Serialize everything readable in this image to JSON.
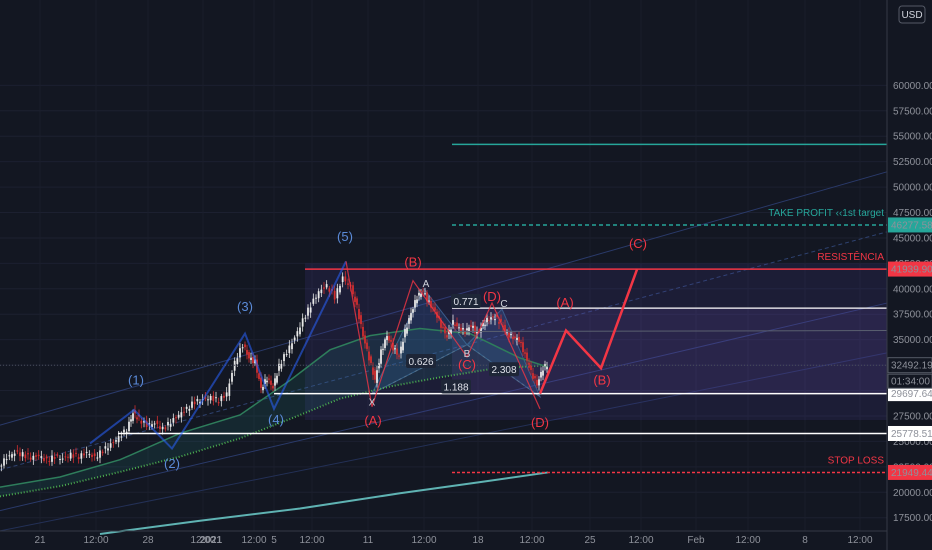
{
  "currency": "USD",
  "chart_data": {
    "type": "candlestick",
    "title": "",
    "xlabel": "",
    "ylabel": "",
    "ylim": [
      15800,
      62000
    ],
    "x_ticks": [
      "21",
      "12:00",
      "28",
      "12:00",
      "2021",
      "12:00",
      "5",
      "12:00",
      "11",
      "12:00",
      "18",
      "12:00",
      "25",
      "12:00",
      "Feb",
      "12:00",
      "8",
      "12:00"
    ],
    "y_ticks": [
      17500,
      20000,
      22500,
      25000,
      27500,
      30000,
      32500,
      35000,
      37500,
      40000,
      42500,
      45000,
      47500,
      50000,
      52500,
      55000,
      57500,
      60000
    ],
    "price_path": [
      {
        "t": 0,
        "v": 22600
      },
      {
        "t": 8,
        "v": 23400
      },
      {
        "t": 16,
        "v": 23900
      },
      {
        "t": 24,
        "v": 23700
      },
      {
        "t": 32,
        "v": 23400
      },
      {
        "t": 40,
        "v": 23600
      },
      {
        "t": 48,
        "v": 23100
      },
      {
        "t": 56,
        "v": 23500
      },
      {
        "t": 64,
        "v": 23300
      },
      {
        "t": 72,
        "v": 23700
      },
      {
        "t": 80,
        "v": 23500
      },
      {
        "t": 88,
        "v": 23900
      },
      {
        "t": 96,
        "v": 23400
      },
      {
        "t": 104,
        "v": 24100
      },
      {
        "t": 112,
        "v": 24700
      },
      {
        "t": 120,
        "v": 25400
      },
      {
        "t": 128,
        "v": 26200
      },
      {
        "t": 134,
        "v": 27800
      },
      {
        "t": 140,
        "v": 27200
      },
      {
        "t": 148,
        "v": 26600
      },
      {
        "t": 156,
        "v": 26800
      },
      {
        "t": 164,
        "v": 26200
      },
      {
        "t": 172,
        "v": 26900
      },
      {
        "t": 180,
        "v": 27600
      },
      {
        "t": 188,
        "v": 28200
      },
      {
        "t": 196,
        "v": 28900
      },
      {
        "t": 204,
        "v": 29100
      },
      {
        "t": 212,
        "v": 29300
      },
      {
        "t": 220,
        "v": 29000
      },
      {
        "t": 228,
        "v": 29700
      },
      {
        "t": 236,
        "v": 32800
      },
      {
        "t": 244,
        "v": 34500
      },
      {
        "t": 250,
        "v": 33200
      },
      {
        "t": 256,
        "v": 32800
      },
      {
        "t": 262,
        "v": 30200
      },
      {
        "t": 268,
        "v": 31200
      },
      {
        "t": 274,
        "v": 30300
      },
      {
        "t": 280,
        "v": 32400
      },
      {
        "t": 288,
        "v": 33800
      },
      {
        "t": 296,
        "v": 35200
      },
      {
        "t": 304,
        "v": 36900
      },
      {
        "t": 312,
        "v": 38400
      },
      {
        "t": 320,
        "v": 39700
      },
      {
        "t": 328,
        "v": 40300
      },
      {
        "t": 336,
        "v": 39200
      },
      {
        "t": 344,
        "v": 41100
      },
      {
        "t": 352,
        "v": 40100
      },
      {
        "t": 358,
        "v": 38200
      },
      {
        "t": 364,
        "v": 35400
      },
      {
        "t": 370,
        "v": 33200
      },
      {
        "t": 376,
        "v": 31000
      },
      {
        "t": 382,
        "v": 33800
      },
      {
        "t": 388,
        "v": 35400
      },
      {
        "t": 394,
        "v": 34200
      },
      {
        "t": 400,
        "v": 33400
      },
      {
        "t": 406,
        "v": 35800
      },
      {
        "t": 412,
        "v": 37600
      },
      {
        "t": 418,
        "v": 39200
      },
      {
        "t": 424,
        "v": 39800
      },
      {
        "t": 430,
        "v": 38600
      },
      {
        "t": 436,
        "v": 37800
      },
      {
        "t": 442,
        "v": 36400
      },
      {
        "t": 448,
        "v": 35300
      },
      {
        "t": 454,
        "v": 36700
      },
      {
        "t": 460,
        "v": 36100
      },
      {
        "t": 466,
        "v": 35800
      },
      {
        "t": 472,
        "v": 36400
      },
      {
        "t": 478,
        "v": 35600
      },
      {
        "t": 484,
        "v": 36500
      },
      {
        "t": 490,
        "v": 37100
      },
      {
        "t": 496,
        "v": 37200
      },
      {
        "t": 502,
        "v": 36600
      },
      {
        "t": 508,
        "v": 35600
      },
      {
        "t": 514,
        "v": 35200
      },
      {
        "t": 520,
        "v": 35000
      },
      {
        "t": 526,
        "v": 33500
      },
      {
        "t": 532,
        "v": 31800
      },
      {
        "t": 538,
        "v": 30600
      },
      {
        "t": 544,
        "v": 32200
      },
      {
        "t": 548,
        "v": 32490
      }
    ],
    "levels": [
      {
        "name": "TAKE PROFIT ‹‹1st target",
        "value": 46277.58,
        "label": "46277.58",
        "color": "#26a69a",
        "style": "dashed"
      },
      {
        "name": "RESISTÊNCIA",
        "value": 41939.9,
        "label": "41939.90",
        "color": "#f23645",
        "style": "solid"
      },
      {
        "name": "",
        "value": 29697.64,
        "label": "29697.64",
        "color": "#ffffff",
        "style": "solid"
      },
      {
        "name": "",
        "value": 25778.51,
        "label": "25778.51",
        "color": "#ffffff",
        "style": "solid"
      },
      {
        "name": "STOP LOSS",
        "value": 21949.44,
        "label": "21949.44",
        "color": "#f23645",
        "style": "dashed"
      }
    ],
    "current_price": {
      "value": 32492.19,
      "label": "32492.19",
      "countdown": "01:34:00"
    },
    "green_level": 54200,
    "elliott_waves_impulse": [
      {
        "label": "(1)",
        "t": 134,
        "v": 28100
      },
      {
        "label": "(2)",
        "t": 172,
        "v": 24300
      },
      {
        "label": "(3)",
        "t": 245,
        "v": 35600
      },
      {
        "label": "(4)",
        "t": 274,
        "v": 28200
      },
      {
        "label": "(5)",
        "t": 346,
        "v": 42700
      }
    ],
    "elliott_waves_correction": [
      {
        "label": "(A)",
        "t": 372,
        "v": 28400
      },
      {
        "label": "(B)",
        "t": 413,
        "v": 40800
      },
      {
        "label": "(C)",
        "t": 467,
        "v": 33300
      },
      {
        "label": "(D)",
        "t": 492,
        "v": 38600
      },
      {
        "label": "(D)",
        "t": 540,
        "v": 28200
      }
    ],
    "pattern_points": [
      {
        "label": "X",
        "t": 372,
        "v": 29700
      },
      {
        "label": "A",
        "t": 424,
        "v": 40000
      },
      {
        "label": "B",
        "t": 467,
        "v": 34500
      },
      {
        "label": "C",
        "t": 502,
        "v": 38000
      },
      {
        "label": "",
        "t": 540,
        "v": 29400
      }
    ],
    "pattern_ratios": [
      {
        "label": "0.771",
        "t": 466,
        "v": 38700
      },
      {
        "label": "0.626",
        "t": 421,
        "v": 32800
      },
      {
        "label": "1.188",
        "t": 456,
        "v": 30300
      },
      {
        "label": "2.308",
        "t": 504,
        "v": 32000
      }
    ],
    "projection": [
      {
        "label": "",
        "t": 540,
        "v": 29700
      },
      {
        "label": "(A)",
        "t": 566,
        "v": 35900
      },
      {
        "label": "(B)",
        "t": 601,
        "v": 32200
      },
      {
        "label": "(C)",
        "t": 637,
        "v": 41900
      }
    ],
    "projection_labels": [
      {
        "label": "(A)",
        "t": 565,
        "v": 38200
      },
      {
        "label": "(B)",
        "t": 602,
        "v": 30600
      },
      {
        "label": "(C)",
        "t": 638,
        "v": 44000
      }
    ],
    "wave_labels": [
      {
        "label": "(1)",
        "t": 136,
        "v": 30600,
        "color": "#5b8bd9"
      },
      {
        "label": "(2)",
        "t": 172,
        "v": 22400,
        "color": "#5b8bd9"
      },
      {
        "label": "(3)",
        "t": 245,
        "v": 37800,
        "color": "#5b8bd9"
      },
      {
        "label": "(4)",
        "t": 276,
        "v": 26700,
        "color": "#5b8bd9"
      },
      {
        "label": "(5)",
        "t": 345,
        "v": 44700,
        "color": "#5b8bd9"
      },
      {
        "label": "(A)",
        "t": 373,
        "v": 26600,
        "color": "#f23645"
      },
      {
        "label": "(B)",
        "t": 413,
        "v": 42200,
        "color": "#f23645"
      },
      {
        "label": "(C)",
        "t": 467,
        "v": 32100,
        "color": "#f23645"
      },
      {
        "label": "(D)",
        "t": 492,
        "v": 38800,
        "color": "#f23645"
      },
      {
        "label": "(D)",
        "t": 540,
        "v": 26400,
        "color": "#f23645"
      }
    ]
  }
}
